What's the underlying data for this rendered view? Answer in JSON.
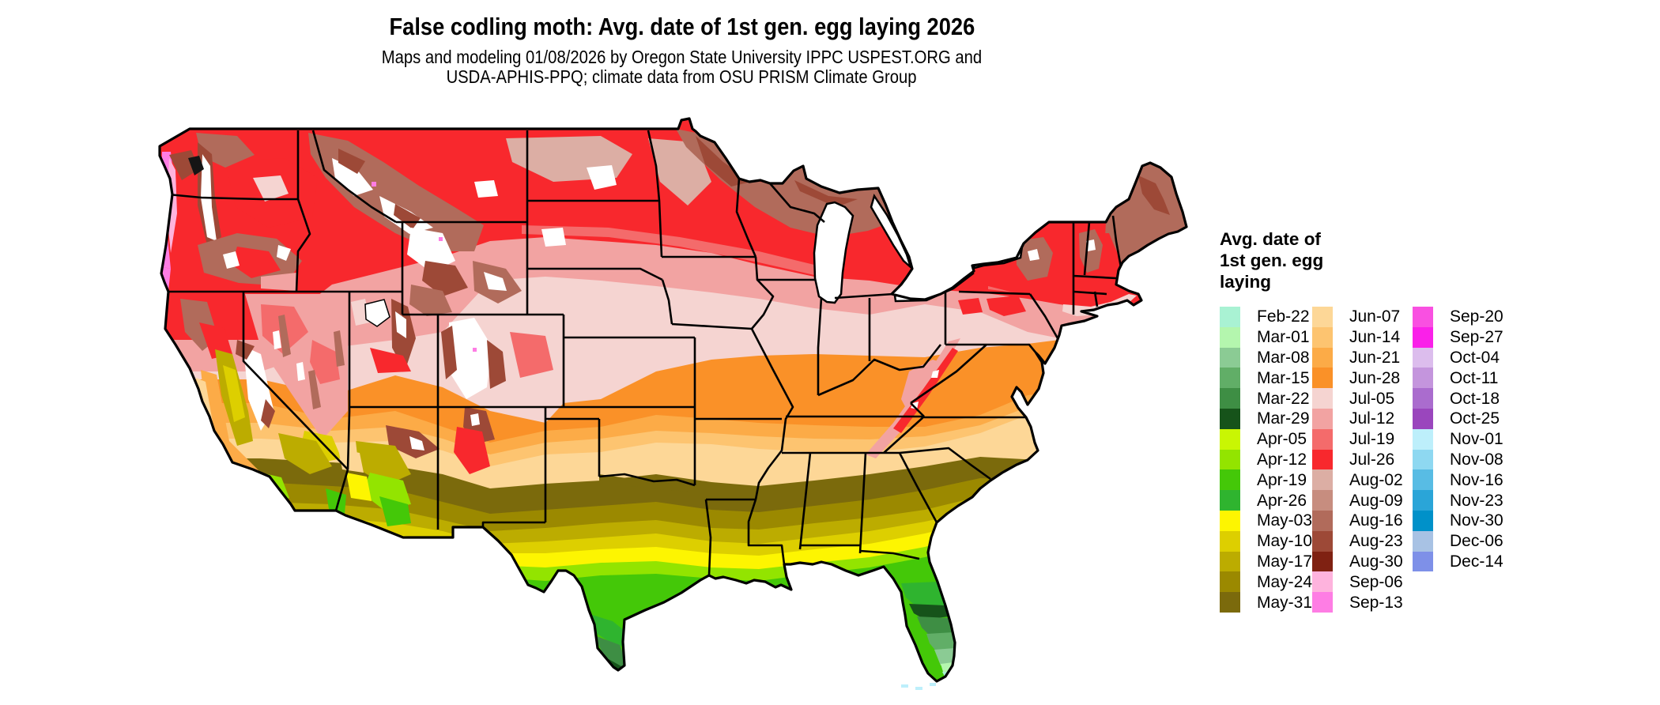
{
  "header": {
    "title": "False codling moth: Avg. date of 1st gen. egg laying 2026",
    "subtitle_line1": "Maps and modeling 01/08/2026 by Oregon State University IPPC USPEST.ORG and",
    "subtitle_line2": "USDA-APHIS-PPQ; climate data from OSU PRISM Climate Group"
  },
  "legend": {
    "title_lines": [
      "Avg. date of",
      "1st gen. egg",
      "laying"
    ],
    "columns": [
      [
        "Feb-22",
        "Mar-01",
        "Mar-08",
        "Mar-15",
        "Mar-22",
        "Mar-29",
        "Apr-05",
        "Apr-12",
        "Apr-19",
        "Apr-26",
        "May-03",
        "May-10",
        "May-17",
        "May-24",
        "May-31"
      ],
      [
        "Jun-07",
        "Jun-14",
        "Jun-21",
        "Jun-28",
        "Jul-05",
        "Jul-12",
        "Jul-19",
        "Jul-26",
        "Aug-02",
        "Aug-09",
        "Aug-16",
        "Aug-23",
        "Aug-30",
        "Sep-06",
        "Sep-13"
      ],
      [
        "Sep-20",
        "Sep-27",
        "Oct-04",
        "Oct-11",
        "Oct-18",
        "Oct-25",
        "Nov-01",
        "Nov-08",
        "Nov-16",
        "Nov-23",
        "Nov-30",
        "Dec-06",
        "Dec-14"
      ]
    ]
  },
  "colors": {
    "Feb-22": "#a9f2d3",
    "Mar-01": "#b4f6ae",
    "Mar-08": "#8bcb94",
    "Mar-15": "#61ae67",
    "Mar-22": "#3e8e44",
    "Mar-29": "#16531a",
    "Apr-05": "#c9f603",
    "Apr-12": "#93e400",
    "Apr-19": "#44c808",
    "Apr-26": "#2fb42f",
    "May-03": "#fdf501",
    "May-10": "#ddcf00",
    "May-17": "#bcac00",
    "May-24": "#9b8900",
    "May-31": "#7b6a0c",
    "Jun-07": "#fdd797",
    "Jun-14": "#fdc470",
    "Jun-21": "#fcab47",
    "Jun-28": "#fa9128",
    "Jul-05": "#f5d4d1",
    "Jul-12": "#f2a3a2",
    "Jul-19": "#f46b6b",
    "Jul-26": "#f8282d",
    "Aug-02": "#dcaea4",
    "Aug-09": "#c78d7f",
    "Aug-16": "#b16b5b",
    "Aug-23": "#9d4937",
    "Aug-30": "#7f2112",
    "Sep-06": "#feb3dd",
    "Sep-13": "#fe7de4",
    "Sep-20": "#f950e1",
    "Sep-27": "#fa20e9",
    "Oct-04": "#dcbded",
    "Oct-11": "#c495dd",
    "Oct-18": "#aa6cce",
    "Oct-25": "#9a46bd",
    "Nov-01": "#bdeffb",
    "Nov-08": "#8ed8f1",
    "Nov-16": "#58bce4",
    "Nov-23": "#2aa5d8",
    "Nov-30": "#0091c9",
    "Dec-06": "#a8c2e4",
    "Dec-14": "#7e90e8",
    "no_data": "#ffffff",
    "water": "#ffffff",
    "state_border": "#000000",
    "sound_dark": "#151515"
  }
}
